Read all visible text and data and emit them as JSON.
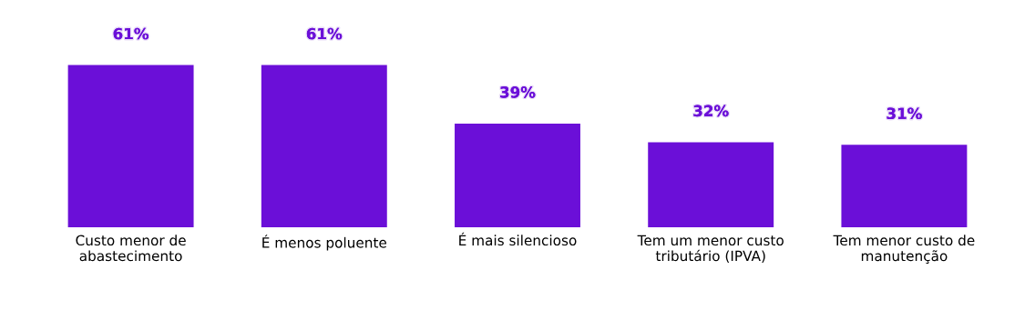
{
  "chart_data": {
    "type": "bar",
    "categories": [
      "Custo menor de\nabastecimento",
      "É menos poluente",
      "É mais silencioso",
      "Tem um menor custo\ntributário (IPVA)",
      "Tem menor custo de\nmanutenção"
    ],
    "values": [
      61,
      61,
      39,
      32,
      31
    ],
    "value_labels": [
      "61%",
      "61%",
      "39%",
      "32%",
      "31%"
    ],
    "color": "#6b0fd8",
    "tick_labels": "x",
    "grid": false
  }
}
